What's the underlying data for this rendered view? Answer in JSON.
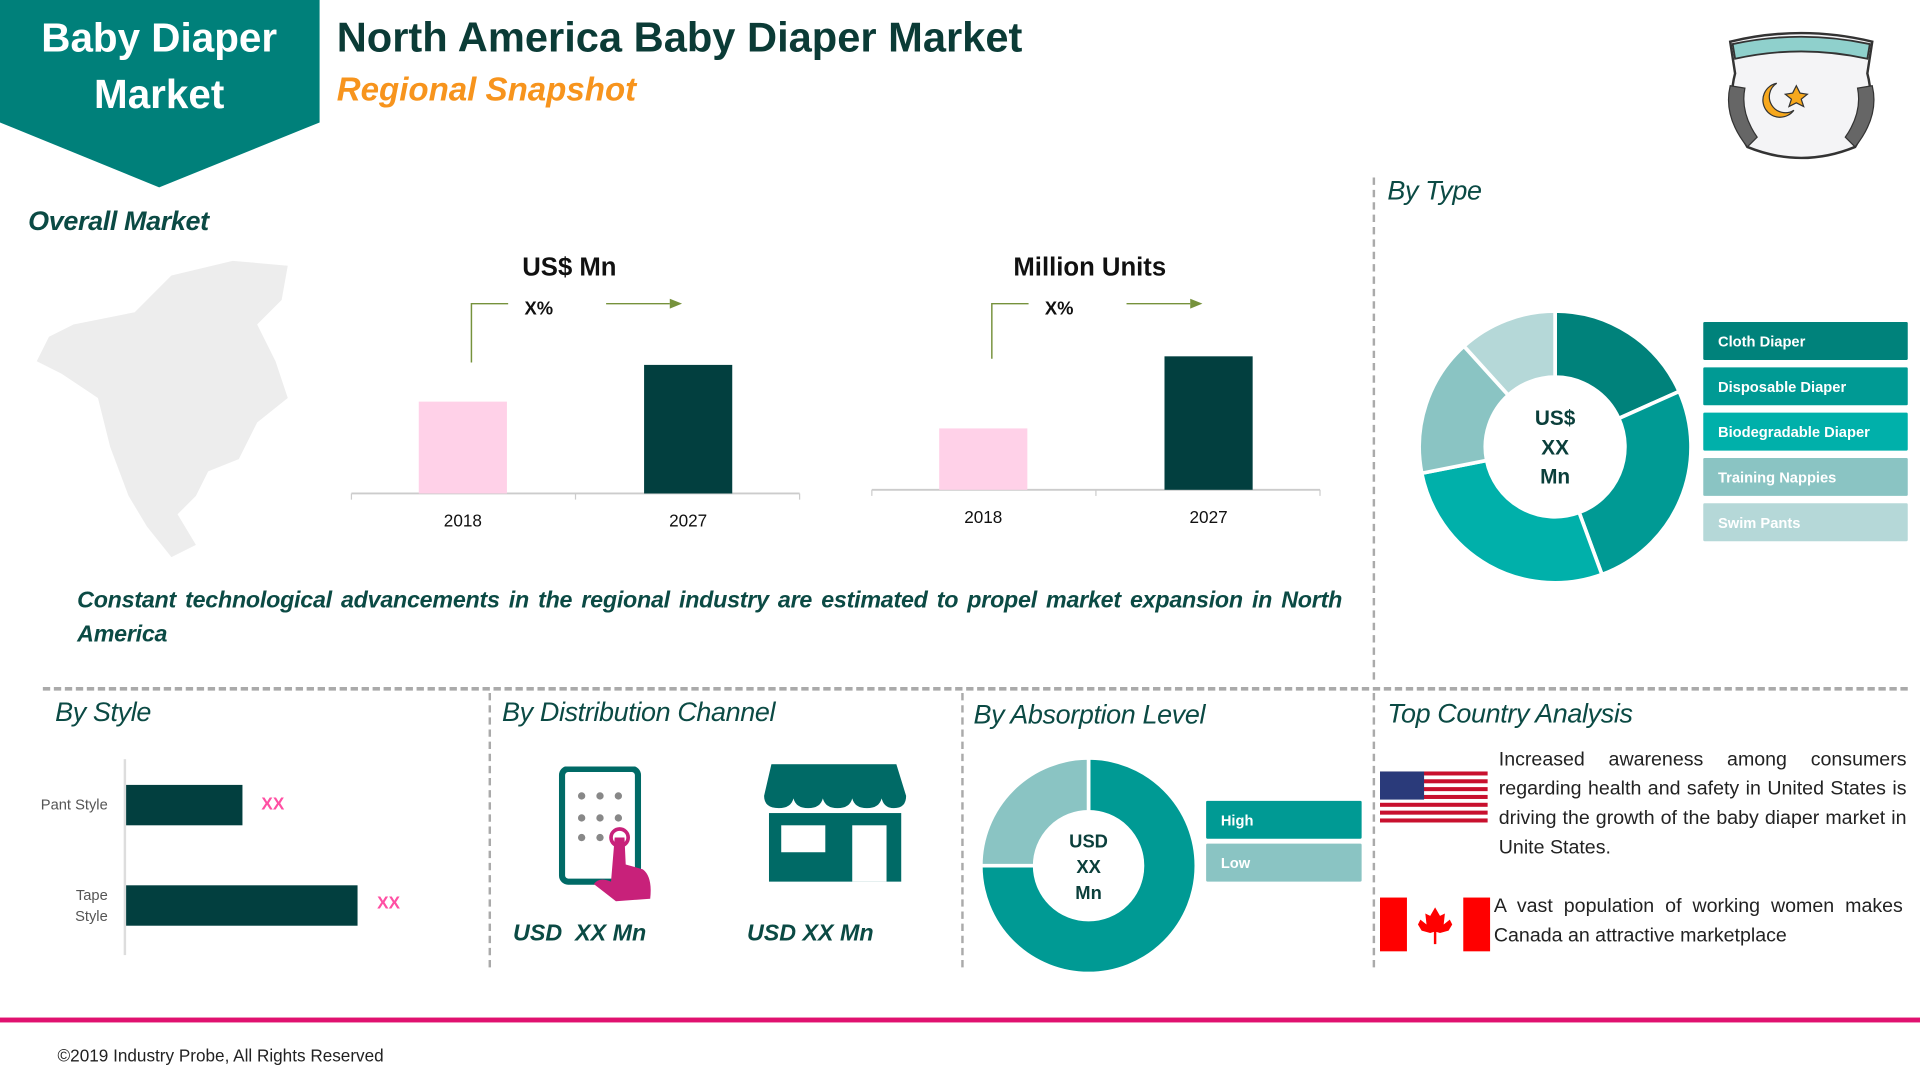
{
  "header": {
    "badge": [
      "Baby Diaper",
      "Market"
    ],
    "title": "North America Baby Diaper Market",
    "subtitle": "Regional Snapshot"
  },
  "overall": {
    "title": "Overall Market",
    "statement": "Constant technological advancements in the regional industry are estimated to propel market expansion in North America"
  },
  "colors": {
    "teal": "#00807a",
    "dark": "#023f3f",
    "pink_bar": "#ffd1e8",
    "orange": "#f7941d",
    "magenta": "#e0116f",
    "xx_pink": "#ff4fa3",
    "arrow_green": "#76923c"
  },
  "chart_data": [
    {
      "type": "bar",
      "title": "US$ Mn",
      "categories": [
        "2018",
        "2027"
      ],
      "values": [
        50,
        70
      ],
      "growth_label": "X%",
      "colors": [
        "#ffd1e8",
        "#023f3f"
      ]
    },
    {
      "type": "bar",
      "title": "Million Units",
      "categories": [
        "2018",
        "2027"
      ],
      "values": [
        46,
        100
      ],
      "growth_label": "X%",
      "colors": [
        "#ffd1e8",
        "#023f3f"
      ]
    },
    {
      "type": "pie",
      "title": "By Type",
      "center_label": [
        "US$",
        "XX",
        "Mn"
      ],
      "categories": [
        "Cloth Diaper",
        "Disposable Diaper",
        "Biodegradable Diaper",
        "Training Nappies",
        "Swim Pants"
      ],
      "values": [
        18.3,
        26.1,
        27.5,
        16.4,
        11.7
      ],
      "colors": [
        "#00827b",
        "#009a94",
        "#00b0aa",
        "#8ac4c3",
        "#b5d8d8"
      ]
    },
    {
      "type": "bar",
      "orientation": "horizontal",
      "title": "By Style",
      "categories": [
        "Pant Style",
        "Tape Style"
      ],
      "values": [
        50,
        100
      ],
      "data_labels": [
        "XX",
        "XX"
      ]
    },
    {
      "type": "pie",
      "title": "By Absorption Level",
      "center_label": [
        "USD",
        "XX",
        "Mn"
      ],
      "categories": [
        "High",
        "Low"
      ],
      "values": [
        75,
        25
      ],
      "colors": [
        "#009a94",
        "#8ac4c3"
      ]
    }
  ],
  "distribution": {
    "title": "By Distribution Channel",
    "online_label": "USD  XX Mn",
    "offline_label": "USD XX Mn",
    "online_icon": "tablet-touch-icon",
    "offline_icon": "store-icon"
  },
  "country": {
    "title": "Top Country Analysis",
    "us_text": "Increased awareness among consumers regarding health and safety in United States is driving the growth of the baby diaper market in Unite States.",
    "canada_text": "A vast population of working women makes Canada an attractive marketplace"
  },
  "footer": {
    "copyright": "©2019 Industry Probe, All Rights Reserved"
  }
}
